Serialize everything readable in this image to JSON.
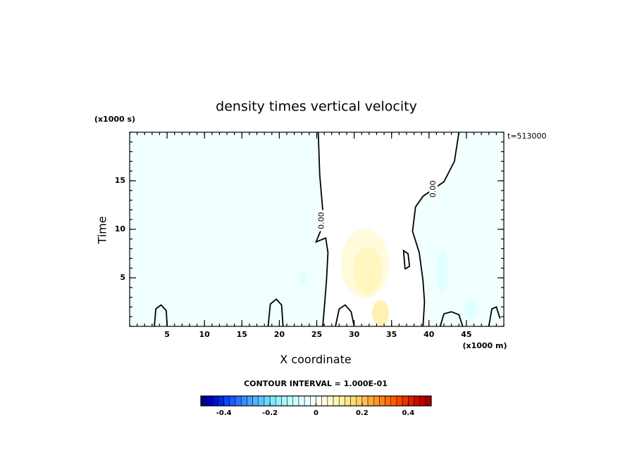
{
  "chart_data": {
    "type": "contour",
    "title": "density times vertical velocity",
    "time_label": "t=513000",
    "xlabel": "X coordinate",
    "xunit": "(x1000 m)",
    "ylabel": "Time",
    "yunit": "(x1000 s)",
    "xlim": [
      0,
      50
    ],
    "ylim": [
      0,
      20
    ],
    "xticks": [
      5,
      10,
      15,
      20,
      25,
      30,
      35,
      40,
      45
    ],
    "yticks": [
      5,
      10,
      15
    ],
    "line_color": "#000000",
    "contours": [
      {
        "level": 0,
        "label": "0.00",
        "x": [
          25.2,
          25.4,
          25.8,
          25.5,
          24.9,
          26.2,
          26.5,
          26.3,
          26.0,
          25.8
        ],
        "y": [
          20,
          15.6,
          12,
          9.8,
          8.7,
          9.1,
          7.6,
          4.7,
          1.8,
          0
        ]
      },
      {
        "level": 0,
        "label": "0.00",
        "x": [
          44,
          43.4,
          42,
          39.2,
          38.2,
          37.8,
          38.7,
          39.2,
          39.4,
          39.2
        ],
        "y": [
          20,
          17,
          14.9,
          13.4,
          12.3,
          9.8,
          7.6,
          4.7,
          2.5,
          0
        ]
      },
      {
        "level": 0,
        "x": [
          3.3,
          3.5,
          4.2,
          4.9,
          5.0
        ],
        "y": [
          0,
          1.8,
          2.2,
          1.6,
          0
        ]
      },
      {
        "level": 0,
        "x": [
          18.5,
          18.8,
          19.6,
          20.3,
          20.5
        ],
        "y": [
          0,
          2.3,
          2.8,
          2.2,
          0
        ]
      },
      {
        "level": 0,
        "x": [
          27.5,
          28.0,
          28.8,
          29.6,
          30.0
        ],
        "y": [
          0,
          1.8,
          2.2,
          1.5,
          0
        ]
      },
      {
        "level": 0,
        "x": [
          41.5,
          42.0,
          43.0,
          44.0,
          44.5
        ],
        "y": [
          0,
          1.3,
          1.5,
          1.2,
          0
        ]
      },
      {
        "level": 0,
        "x": [
          48.0,
          48.4,
          49.0,
          49.5
        ],
        "y": [
          0,
          1.8,
          2.0,
          0.8
        ]
      },
      {
        "level": 0,
        "x": [
          36.8,
          36.6,
          37.2,
          37.4,
          36.8
        ],
        "y": [
          5.9,
          7.8,
          7.5,
          6.2,
          5.9
        ]
      }
    ],
    "contour_interval_label": "CONTOUR INTERVAL = 1.000E-01",
    "colorbar": {
      "range": [
        -0.5,
        0.5
      ],
      "ticks": [
        -0.4,
        -0.2,
        0,
        0.2,
        0.4
      ],
      "colors": [
        "#00008c",
        "#0000b4",
        "#0010d2",
        "#0028eb",
        "#0a46ff",
        "#1e5aff",
        "#2c74ff",
        "#3a8cff",
        "#46a0ff",
        "#50b4ff",
        "#5ac8ff",
        "#6ed7ff",
        "#82e4ff",
        "#96eeff",
        "#aaf4ff",
        "#beffff",
        "#cfffff",
        "#dcffff",
        "#e8ffff",
        "#f4ffff",
        "#ffffee",
        "#ffffdc",
        "#fffac8",
        "#fff5b4",
        "#fff0a0",
        "#ffe68c",
        "#ffdc78",
        "#ffcd64",
        "#ffbe50",
        "#ffaa3c",
        "#ff9628",
        "#ff8214",
        "#ff6e00",
        "#ff5a00",
        "#f54600",
        "#eb3200",
        "#dc1e00",
        "#cd0a00",
        "#b90000",
        "#a00000"
      ]
    }
  }
}
